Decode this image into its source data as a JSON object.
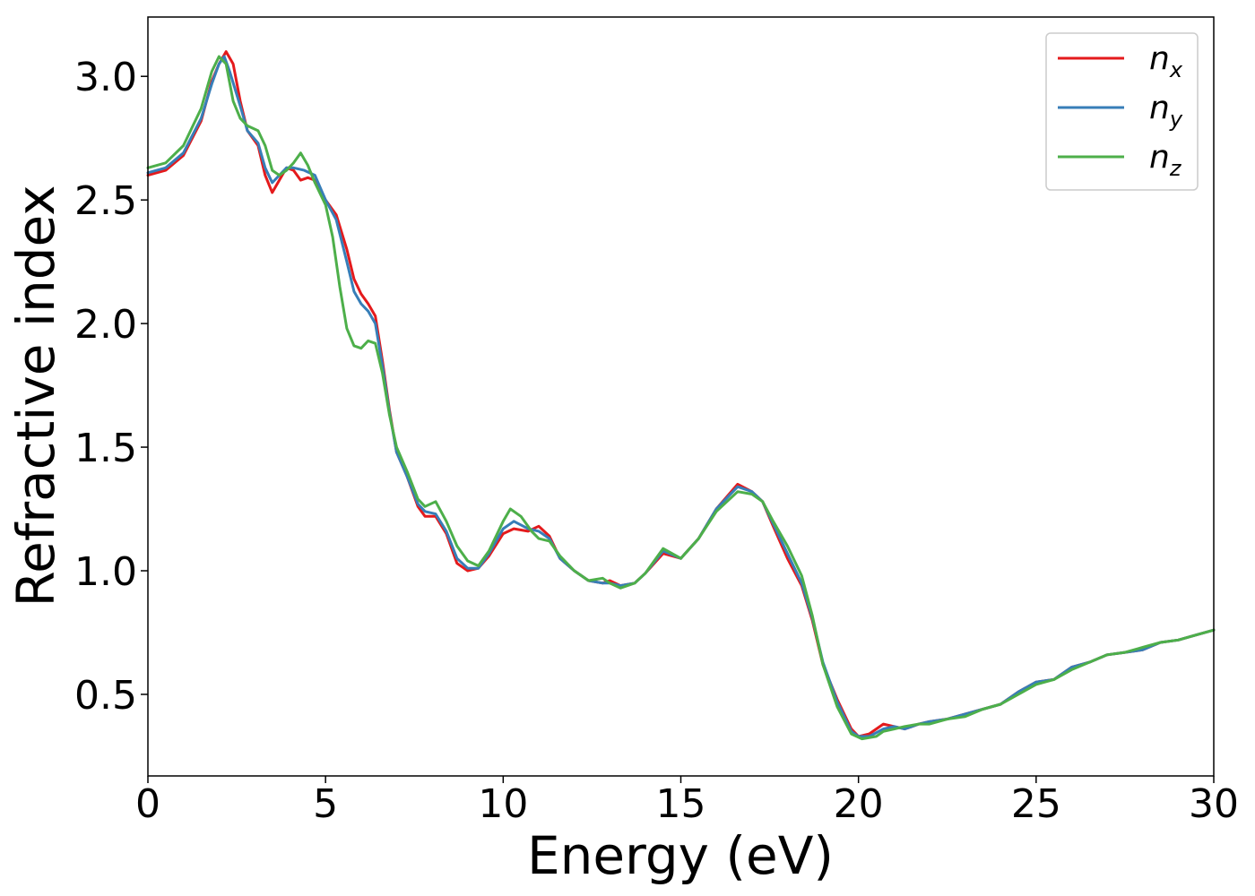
{
  "chart_data": {
    "type": "line",
    "title": "",
    "xlabel": "Energy (eV)",
    "ylabel": "Refractive index",
    "xlim": [
      0,
      30
    ],
    "ylim": [
      0.17,
      3.24
    ],
    "xticks": [
      0,
      5,
      10,
      15,
      20,
      25,
      30
    ],
    "xtick_labels": [
      "0",
      "5",
      "10",
      "15",
      "20",
      "25",
      "30"
    ],
    "yticks": [
      0.5,
      1.0,
      1.5,
      2.0,
      2.5,
      3.0
    ],
    "ytick_labels": [
      "0.5",
      "1.0",
      "1.5",
      "2.0",
      "2.5",
      "3.0"
    ],
    "grid": false,
    "legend_position": "top-right",
    "series": [
      {
        "name": "n_x",
        "label_main": "n",
        "label_sub": "x",
        "color": "#e41a1c",
        "points": [
          [
            0,
            2.6
          ],
          [
            0.5,
            2.62
          ],
          [
            1,
            2.68
          ],
          [
            1.5,
            2.82
          ],
          [
            1.8,
            2.98
          ],
          [
            2,
            3.05
          ],
          [
            2.2,
            3.1
          ],
          [
            2.4,
            3.05
          ],
          [
            2.6,
            2.9
          ],
          [
            2.8,
            2.78
          ],
          [
            3.1,
            2.72
          ],
          [
            3.3,
            2.6
          ],
          [
            3.5,
            2.53
          ],
          [
            3.7,
            2.58
          ],
          [
            3.9,
            2.63
          ],
          [
            4.1,
            2.62
          ],
          [
            4.3,
            2.58
          ],
          [
            4.5,
            2.59
          ],
          [
            4.7,
            2.58
          ],
          [
            5,
            2.5
          ],
          [
            5.3,
            2.44
          ],
          [
            5.6,
            2.3
          ],
          [
            5.8,
            2.18
          ],
          [
            6,
            2.12
          ],
          [
            6.2,
            2.08
          ],
          [
            6.4,
            2.03
          ],
          [
            6.6,
            1.85
          ],
          [
            6.8,
            1.65
          ],
          [
            7,
            1.48
          ],
          [
            7.3,
            1.38
          ],
          [
            7.6,
            1.26
          ],
          [
            7.8,
            1.22
          ],
          [
            8.1,
            1.22
          ],
          [
            8.4,
            1.15
          ],
          [
            8.7,
            1.03
          ],
          [
            9,
            1.0
          ],
          [
            9.3,
            1.01
          ],
          [
            9.6,
            1.06
          ],
          [
            10,
            1.15
          ],
          [
            10.3,
            1.17
          ],
          [
            10.7,
            1.16
          ],
          [
            11,
            1.18
          ],
          [
            11.3,
            1.14
          ],
          [
            11.6,
            1.05
          ],
          [
            12,
            1.0
          ],
          [
            12.4,
            0.96
          ],
          [
            12.8,
            0.95
          ],
          [
            13,
            0.96
          ],
          [
            13.3,
            0.94
          ],
          [
            13.7,
            0.95
          ],
          [
            14,
            0.99
          ],
          [
            14.5,
            1.07
          ],
          [
            15,
            1.05
          ],
          [
            15.5,
            1.13
          ],
          [
            16,
            1.25
          ],
          [
            16.6,
            1.35
          ],
          [
            17,
            1.32
          ],
          [
            17.3,
            1.28
          ],
          [
            17.6,
            1.18
          ],
          [
            18,
            1.05
          ],
          [
            18.4,
            0.94
          ],
          [
            18.7,
            0.8
          ],
          [
            19,
            0.62
          ],
          [
            19.4,
            0.48
          ],
          [
            19.8,
            0.36
          ],
          [
            20,
            0.33
          ],
          [
            20.3,
            0.34
          ],
          [
            20.7,
            0.38
          ],
          [
            21,
            0.37
          ],
          [
            21.3,
            0.36
          ],
          [
            21.7,
            0.38
          ],
          [
            22,
            0.39
          ],
          [
            22.5,
            0.4
          ],
          [
            23,
            0.42
          ],
          [
            23.5,
            0.44
          ],
          [
            24,
            0.46
          ],
          [
            24.5,
            0.51
          ],
          [
            25,
            0.55
          ],
          [
            25.5,
            0.56
          ],
          [
            26,
            0.61
          ],
          [
            26.5,
            0.63
          ],
          [
            27,
            0.66
          ],
          [
            27.5,
            0.67
          ],
          [
            28,
            0.68
          ],
          [
            28.5,
            0.71
          ],
          [
            29,
            0.72
          ],
          [
            29.5,
            0.74
          ],
          [
            30,
            0.76
          ]
        ]
      },
      {
        "name": "n_y",
        "label_main": "n",
        "label_sub": "y",
        "color": "#377eb8",
        "points": [
          [
            0,
            2.61
          ],
          [
            0.5,
            2.63
          ],
          [
            1,
            2.69
          ],
          [
            1.5,
            2.83
          ],
          [
            1.8,
            2.97
          ],
          [
            2,
            3.05
          ],
          [
            2.15,
            3.08
          ],
          [
            2.3,
            3.02
          ],
          [
            2.6,
            2.88
          ],
          [
            2.8,
            2.78
          ],
          [
            3.1,
            2.73
          ],
          [
            3.3,
            2.63
          ],
          [
            3.5,
            2.57
          ],
          [
            3.7,
            2.6
          ],
          [
            3.9,
            2.63
          ],
          [
            4.1,
            2.63
          ],
          [
            4.4,
            2.62
          ],
          [
            4.7,
            2.6
          ],
          [
            5,
            2.5
          ],
          [
            5.3,
            2.42
          ],
          [
            5.6,
            2.25
          ],
          [
            5.8,
            2.13
          ],
          [
            6,
            2.08
          ],
          [
            6.2,
            2.05
          ],
          [
            6.4,
            2.0
          ],
          [
            6.6,
            1.83
          ],
          [
            6.8,
            1.64
          ],
          [
            7,
            1.48
          ],
          [
            7.3,
            1.38
          ],
          [
            7.6,
            1.27
          ],
          [
            7.8,
            1.24
          ],
          [
            8.1,
            1.23
          ],
          [
            8.4,
            1.16
          ],
          [
            8.7,
            1.05
          ],
          [
            9,
            1.01
          ],
          [
            9.3,
            1.01
          ],
          [
            9.6,
            1.07
          ],
          [
            10,
            1.17
          ],
          [
            10.3,
            1.2
          ],
          [
            10.7,
            1.17
          ],
          [
            11,
            1.16
          ],
          [
            11.3,
            1.13
          ],
          [
            11.6,
            1.05
          ],
          [
            12,
            1.0
          ],
          [
            12.4,
            0.96
          ],
          [
            12.8,
            0.95
          ],
          [
            13,
            0.95
          ],
          [
            13.3,
            0.94
          ],
          [
            13.7,
            0.95
          ],
          [
            14,
            0.99
          ],
          [
            14.5,
            1.08
          ],
          [
            15,
            1.05
          ],
          [
            15.5,
            1.13
          ],
          [
            16,
            1.25
          ],
          [
            16.6,
            1.34
          ],
          [
            17,
            1.32
          ],
          [
            17.3,
            1.28
          ],
          [
            17.6,
            1.19
          ],
          [
            18,
            1.07
          ],
          [
            18.4,
            0.95
          ],
          [
            18.7,
            0.81
          ],
          [
            19,
            0.63
          ],
          [
            19.4,
            0.47
          ],
          [
            19.8,
            0.35
          ],
          [
            20,
            0.33
          ],
          [
            20.3,
            0.33
          ],
          [
            20.7,
            0.36
          ],
          [
            21,
            0.37
          ],
          [
            21.3,
            0.36
          ],
          [
            21.7,
            0.38
          ],
          [
            22,
            0.39
          ],
          [
            22.5,
            0.4
          ],
          [
            23,
            0.42
          ],
          [
            23.5,
            0.44
          ],
          [
            24,
            0.46
          ],
          [
            24.5,
            0.51
          ],
          [
            25,
            0.55
          ],
          [
            25.5,
            0.56
          ],
          [
            26,
            0.61
          ],
          [
            26.5,
            0.63
          ],
          [
            27,
            0.66
          ],
          [
            27.5,
            0.67
          ],
          [
            28,
            0.68
          ],
          [
            28.5,
            0.71
          ],
          [
            29,
            0.72
          ],
          [
            29.5,
            0.74
          ],
          [
            30,
            0.76
          ]
        ]
      },
      {
        "name": "n_z",
        "label_main": "n",
        "label_sub": "z",
        "color": "#4daf4a",
        "points": [
          [
            0,
            2.63
          ],
          [
            0.5,
            2.65
          ],
          [
            1,
            2.72
          ],
          [
            1.5,
            2.87
          ],
          [
            1.8,
            3.02
          ],
          [
            2,
            3.08
          ],
          [
            2.2,
            3.05
          ],
          [
            2.4,
            2.9
          ],
          [
            2.6,
            2.83
          ],
          [
            2.8,
            2.8
          ],
          [
            3.1,
            2.78
          ],
          [
            3.3,
            2.72
          ],
          [
            3.5,
            2.62
          ],
          [
            3.7,
            2.6
          ],
          [
            3.9,
            2.62
          ],
          [
            4.1,
            2.65
          ],
          [
            4.3,
            2.69
          ],
          [
            4.5,
            2.64
          ],
          [
            4.7,
            2.57
          ],
          [
            5,
            2.48
          ],
          [
            5.2,
            2.35
          ],
          [
            5.4,
            2.15
          ],
          [
            5.6,
            1.98
          ],
          [
            5.8,
            1.91
          ],
          [
            6,
            1.9
          ],
          [
            6.2,
            1.93
          ],
          [
            6.4,
            1.92
          ],
          [
            6.6,
            1.8
          ],
          [
            6.8,
            1.63
          ],
          [
            7,
            1.5
          ],
          [
            7.3,
            1.4
          ],
          [
            7.6,
            1.29
          ],
          [
            7.8,
            1.26
          ],
          [
            8.1,
            1.28
          ],
          [
            8.4,
            1.2
          ],
          [
            8.7,
            1.1
          ],
          [
            9,
            1.04
          ],
          [
            9.3,
            1.02
          ],
          [
            9.6,
            1.08
          ],
          [
            10,
            1.2
          ],
          [
            10.2,
            1.25
          ],
          [
            10.5,
            1.22
          ],
          [
            10.8,
            1.16
          ],
          [
            11,
            1.13
          ],
          [
            11.3,
            1.12
          ],
          [
            11.6,
            1.06
          ],
          [
            12,
            1.0
          ],
          [
            12.4,
            0.96
          ],
          [
            12.8,
            0.97
          ],
          [
            13,
            0.95
          ],
          [
            13.3,
            0.93
          ],
          [
            13.7,
            0.95
          ],
          [
            14,
            0.99
          ],
          [
            14.5,
            1.09
          ],
          [
            15,
            1.05
          ],
          [
            15.5,
            1.13
          ],
          [
            16,
            1.24
          ],
          [
            16.6,
            1.32
          ],
          [
            17,
            1.31
          ],
          [
            17.3,
            1.28
          ],
          [
            17.6,
            1.2
          ],
          [
            18,
            1.1
          ],
          [
            18.4,
            0.98
          ],
          [
            18.7,
            0.82
          ],
          [
            19,
            0.62
          ],
          [
            19.4,
            0.45
          ],
          [
            19.8,
            0.34
          ],
          [
            20.1,
            0.32
          ],
          [
            20.5,
            0.33
          ],
          [
            20.7,
            0.35
          ],
          [
            21,
            0.36
          ],
          [
            21.3,
            0.37
          ],
          [
            21.7,
            0.38
          ],
          [
            22,
            0.38
          ],
          [
            22.5,
            0.4
          ],
          [
            23,
            0.41
          ],
          [
            23.5,
            0.44
          ],
          [
            24,
            0.46
          ],
          [
            24.5,
            0.5
          ],
          [
            25,
            0.54
          ],
          [
            25.5,
            0.56
          ],
          [
            26,
            0.6
          ],
          [
            26.5,
            0.63
          ],
          [
            27,
            0.66
          ],
          [
            27.5,
            0.67
          ],
          [
            28,
            0.69
          ],
          [
            28.5,
            0.71
          ],
          [
            29,
            0.72
          ],
          [
            29.5,
            0.74
          ],
          [
            30,
            0.76
          ]
        ]
      }
    ]
  }
}
